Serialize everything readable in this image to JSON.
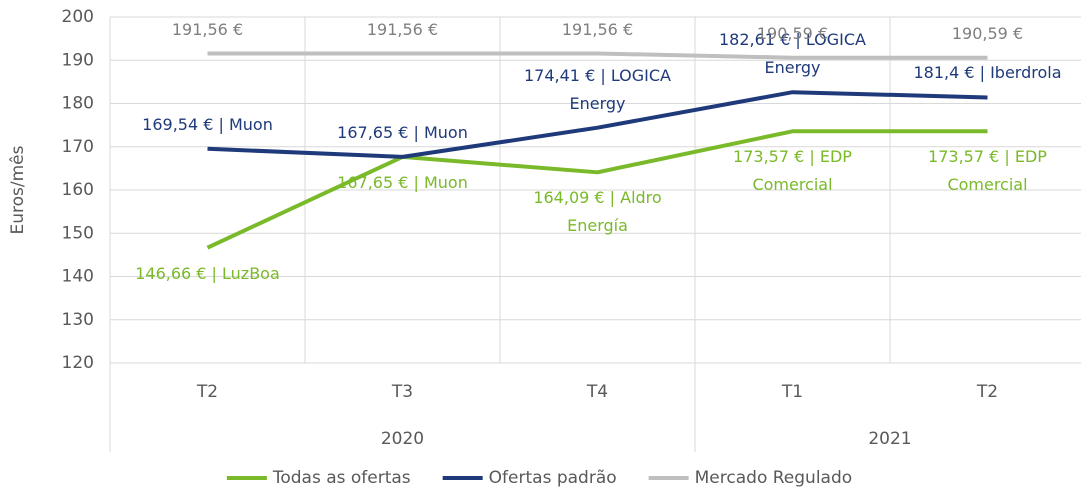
{
  "chart_data": {
    "type": "line",
    "y_label": "Euros/mês",
    "categories": [
      "T2",
      "T3",
      "T4",
      "T1",
      "T2"
    ],
    "groups": [
      {
        "label": "2020",
        "count": 3
      },
      {
        "label": "2021",
        "count": 2
      }
    ],
    "series": [
      {
        "name": "Todas as ofertas",
        "color": "#7ab929",
        "label_side": "below",
        "values": [
          146.66,
          167.65,
          164.09,
          173.57,
          173.57
        ],
        "value_labels": [
          "146,66 € | LuzBoa",
          "167,65 € | Muon",
          "164,09 € | Aldro Energía",
          "173,57 € | EDP Comercial",
          "173,57 € | EDP Comercial"
        ]
      },
      {
        "name": "Ofertas padrão",
        "color": "#1f3a7a",
        "label_side": "above",
        "values": [
          169.54,
          167.65,
          174.41,
          182.61,
          181.4
        ],
        "value_labels": [
          "169,54 € | Muon",
          "167,65 € | Muon",
          "174,41 € | LOGICA Energy",
          "182,61 € | LOGICA Energy",
          "181,4 € | Iberdrola"
        ]
      },
      {
        "name": "Mercado Regulado",
        "color": "#bfbfbf",
        "label_side": "above",
        "values": [
          191.56,
          191.56,
          191.56,
          190.59,
          190.59
        ],
        "value_labels": [
          "191,56 €",
          "191,56 €",
          "191,56 €",
          "190,59 €",
          "190,59 €"
        ]
      }
    ],
    "ylim": [
      120,
      200
    ],
    "yticks": [
      120,
      130,
      140,
      150,
      160,
      170,
      180,
      190,
      200
    ],
    "grid": true,
    "legend": "bottom"
  }
}
